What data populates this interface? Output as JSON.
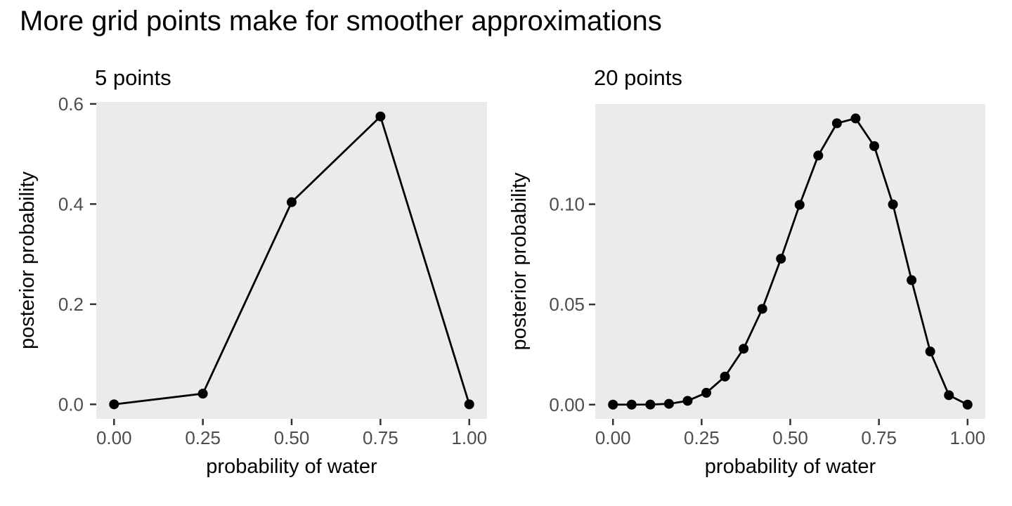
{
  "figure": {
    "title": "More grid points make for smoother approximations"
  },
  "theme": {
    "background": "#FFFFFF",
    "panel_background": "#EBEBEB",
    "line_color": "#000000",
    "point_color": "#000000",
    "tick_label_color": "#4D4D4D",
    "tick_mark_color": "#333333",
    "axis_title_color": "#000000",
    "panel_title_color": "#000000",
    "title_color": "#000000"
  },
  "chart_data": [
    {
      "type": "line",
      "title": "5 points",
      "xlabel": "probability of water",
      "ylabel": "posterior probability",
      "x": [
        0,
        0.25,
        0.5,
        0.75,
        1
      ],
      "y": [
        0,
        0.0213,
        0.4038,
        0.5749,
        0
      ],
      "x_ticks": {
        "values": [
          0,
          0.25,
          0.5,
          0.75,
          1
        ],
        "labels": [
          "0.00",
          "0.25",
          "0.50",
          "0.75",
          "1.00"
        ]
      },
      "y_ticks": {
        "values": [
          0,
          0.2,
          0.4,
          0.6
        ],
        "labels": [
          "0.0",
          "0.2",
          "0.4",
          "0.6"
        ]
      },
      "xlim": [
        -0.05,
        1.05
      ],
      "ylim": [
        -0.029,
        0.604
      ],
      "grid": false,
      "legend": "none",
      "marker": "circle"
    },
    {
      "type": "line",
      "title": "20 points",
      "xlabel": "probability of water",
      "ylabel": "posterior probability",
      "x": [
        0,
        0.0526,
        0.1053,
        0.1579,
        0.2105,
        0.2632,
        0.3158,
        0.3684,
        0.4211,
        0.4737,
        0.5263,
        0.5789,
        0.6316,
        0.6842,
        0.7368,
        0.7895,
        0.8421,
        0.8947,
        0.9474,
        1
      ],
      "y": [
        0,
        1e-06,
        4.3e-05,
        0.00041,
        0.0019,
        0.0059,
        0.014,
        0.0279,
        0.0478,
        0.0728,
        0.0997,
        0.1243,
        0.1404,
        0.1428,
        0.129,
        0.0999,
        0.0621,
        0.0265,
        0.0047,
        0
      ],
      "x_ticks": {
        "values": [
          0,
          0.25,
          0.5,
          0.75,
          1
        ],
        "labels": [
          "0.00",
          "0.25",
          "0.50",
          "0.75",
          "1.00"
        ]
      },
      "y_ticks": {
        "values": [
          0,
          0.05,
          0.1
        ],
        "labels": [
          "0.00",
          "0.05",
          "0.10"
        ]
      },
      "xlim": [
        -0.05,
        1.05
      ],
      "ylim": [
        -0.0071,
        0.15
      ],
      "grid": false,
      "legend": "none",
      "marker": "circle"
    }
  ]
}
